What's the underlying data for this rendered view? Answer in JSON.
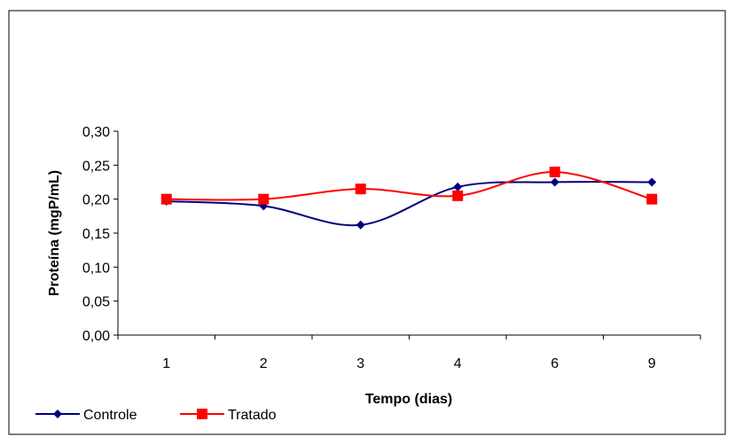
{
  "chart_data": {
    "type": "line",
    "title": "",
    "xlabel": "Tempo (dias)",
    "ylabel": "Proteína (mgP/mL)",
    "categories": [
      "1",
      "2",
      "3",
      "4",
      "6",
      "9"
    ],
    "ylim": [
      0,
      0.3
    ],
    "yticks": [
      "0,00",
      "0,05",
      "0,10",
      "0,15",
      "0,20",
      "0,25",
      "0,30"
    ],
    "grid": false,
    "legend_position": "bottom-left",
    "series": [
      {
        "name": "Controle",
        "values": [
          0.197,
          0.19,
          0.162,
          0.218,
          0.225,
          0.225
        ],
        "color": "#000080",
        "marker": "diamond",
        "smooth": true
      },
      {
        "name": "Tratado",
        "values": [
          0.2,
          0.2,
          0.215,
          0.205,
          0.24,
          0.2
        ],
        "color": "#ff0000",
        "marker": "square",
        "smooth": true
      }
    ]
  }
}
